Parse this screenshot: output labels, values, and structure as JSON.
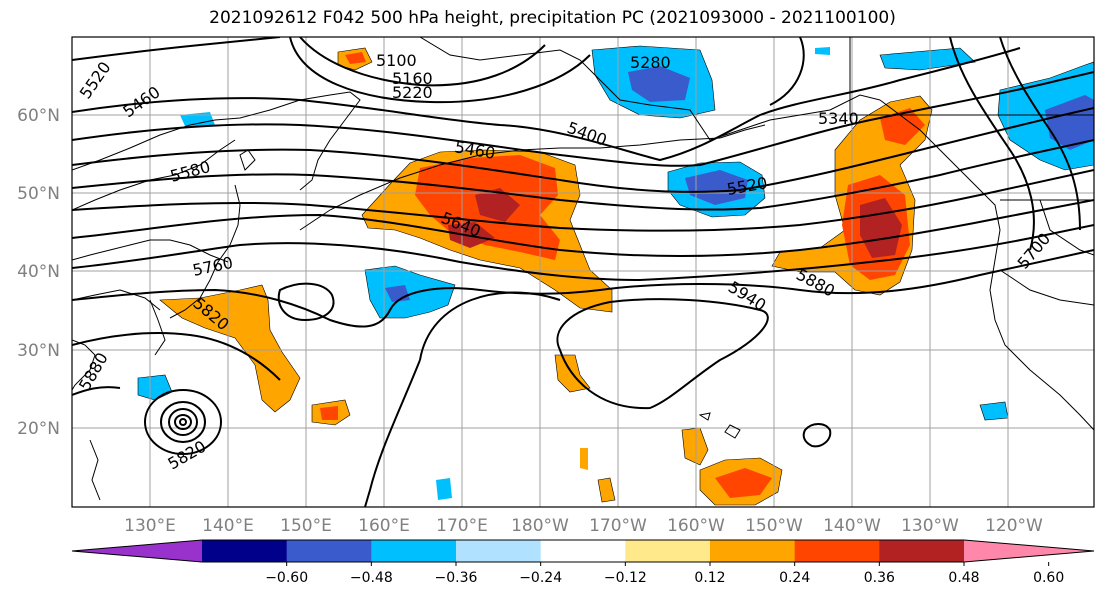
{
  "title": "2021092612 F042 500 hPa height, precipitation PC (2021093000 - 2021100100)",
  "lat_labels": [
    "60°N",
    "50°N",
    "40°N",
    "30°N",
    "20°N"
  ],
  "lon_labels": [
    "130°E",
    "140°E",
    "150°E",
    "160°E",
    "170°E",
    "180°W",
    "170°W",
    "160°W",
    "150°W",
    "140°W",
    "130°W",
    "120°W"
  ],
  "colorbar": {
    "ticks": [
      "−0.60",
      "−0.48",
      "−0.36",
      "−0.24",
      "−0.12",
      "0.12",
      "0.24",
      "0.36",
      "0.48",
      "0.60"
    ],
    "colors": [
      "#9932CC",
      "#00008B",
      "#3A5BCB",
      "#00BFFF",
      "#B0E2FF",
      "#FFFFFF",
      "#FFE98A",
      "#FFA500",
      "#FF4500",
      "#B22222",
      "#FF88AA"
    ]
  },
  "contour_labels": [
    "5100",
    "5160",
    "5220",
    "5280",
    "5520",
    "5460",
    "5400",
    "5460",
    "5340",
    "5580",
    "5520",
    "5640",
    "5700",
    "5760",
    "5820",
    "5880",
    "5940",
    "5880",
    "5820",
    "5700"
  ]
}
